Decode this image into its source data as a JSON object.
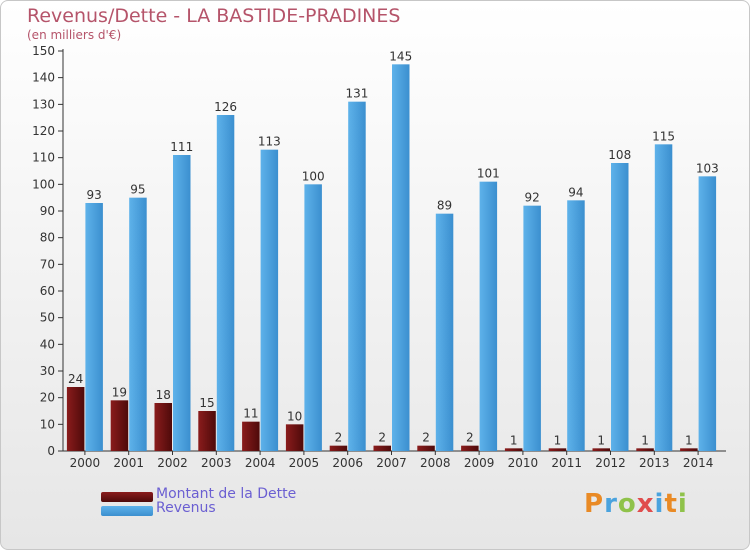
{
  "title": "Revenus/Dette - LA BASTIDE-PRADINES",
  "subtitle": "(en milliers d'€)",
  "logo_text": "Proxiti",
  "colors": {
    "debt": "#7a1414",
    "revenue": "#4aa3de",
    "title": "#b5546a",
    "legend_text": "#6b5fd2"
  },
  "chart_data": {
    "type": "bar",
    "categories": [
      "2000",
      "2001",
      "2002",
      "2003",
      "2004",
      "2005",
      "2006",
      "2007",
      "2008",
      "2009",
      "2010",
      "2011",
      "2012",
      "2013",
      "2014"
    ],
    "series": [
      {
        "name": "Montant de la Dette",
        "values": [
          24,
          19,
          18,
          15,
          11,
          10,
          2,
          2,
          2,
          2,
          1,
          1,
          1,
          1,
          1
        ]
      },
      {
        "name": "Revenus",
        "values": [
          93,
          95,
          111,
          126,
          113,
          100,
          131,
          145,
          89,
          101,
          92,
          94,
          108,
          115,
          103
        ]
      }
    ],
    "ylim": [
      0,
      150
    ],
    "yticks": [
      0,
      10,
      20,
      30,
      40,
      50,
      60,
      70,
      80,
      90,
      100,
      110,
      120,
      130,
      140,
      150
    ],
    "grid": false,
    "legend": "bottom-left"
  }
}
